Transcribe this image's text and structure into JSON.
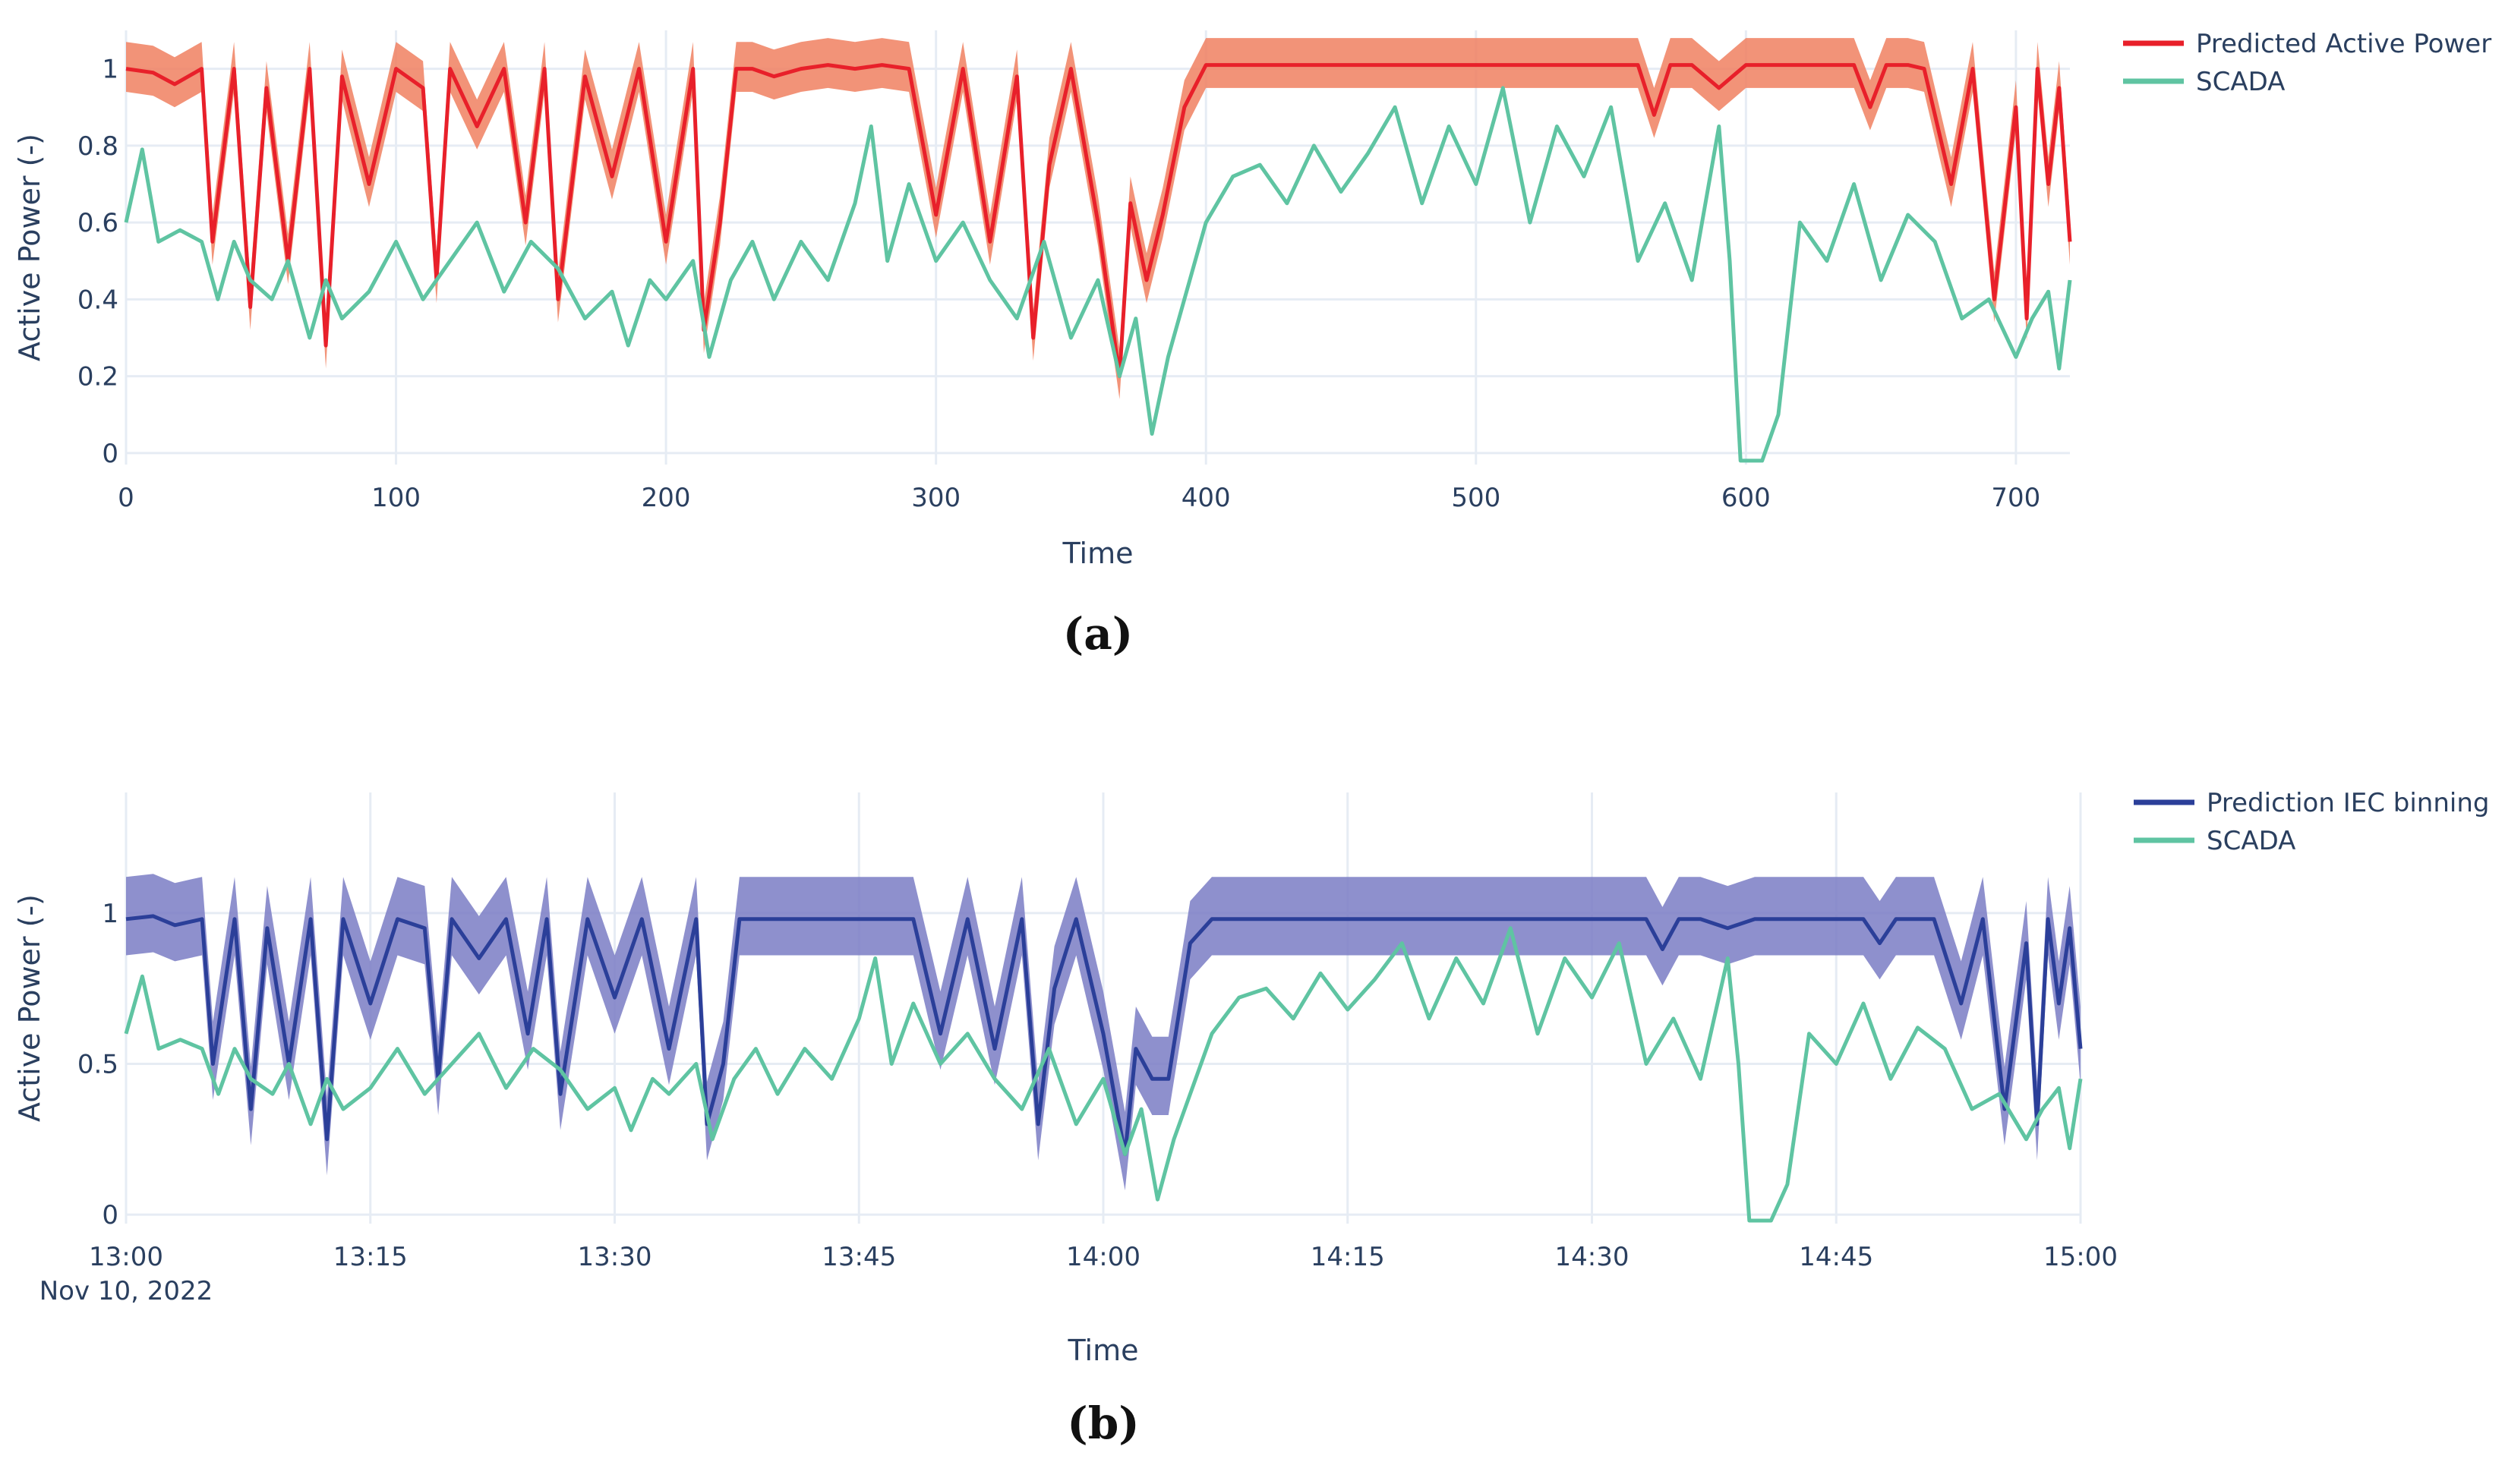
{
  "colors": {
    "predicted_line": "#e8202a",
    "predicted_band": "#f08060",
    "iec_line": "#2b3f99",
    "iec_band": "#7a7cc4",
    "scada": "#5fc4a2",
    "grid": "#e6ecf4",
    "text": "#2a3f5f"
  },
  "chart_data": [
    {
      "type": "line",
      "panel_label": "(a)",
      "xlabel": "Time",
      "ylabel": "Active Power (-)",
      "xlim": [
        0,
        720
      ],
      "ylim": [
        -0.03,
        1.1
      ],
      "x_ticks": [
        0,
        100,
        200,
        300,
        400,
        500,
        600,
        700
      ],
      "x_tick_labels": [
        "0",
        "100",
        "200",
        "300",
        "400",
        "500",
        "600",
        "700"
      ],
      "y_ticks": [
        0,
        0.2,
        0.4,
        0.6,
        0.8,
        1
      ],
      "y_tick_labels": [
        "0",
        "0.2",
        "0.4",
        "0.6",
        "0.8",
        "1"
      ],
      "legend": {
        "position": "top-right",
        "entries": [
          "Predicted Active Power",
          "SCADA"
        ]
      },
      "series": [
        {
          "name": "Predicted Active Power",
          "color_key": "predicted_line",
          "band": {
            "lower_offset": 0.06,
            "upper_offset": 0.07,
            "color_key": "predicted_band"
          },
          "x": [
            0,
            10,
            18,
            28,
            32,
            40,
            46,
            52,
            60,
            68,
            74,
            80,
            90,
            100,
            110,
            115,
            120,
            130,
            140,
            148,
            155,
            160,
            170,
            180,
            190,
            200,
            210,
            214,
            220,
            226,
            232,
            240,
            250,
            260,
            270,
            280,
            290,
            300,
            310,
            320,
            330,
            336,
            342,
            350,
            360,
            368,
            372,
            378,
            384,
            392,
            400,
            420,
            440,
            460,
            480,
            500,
            520,
            540,
            560,
            566,
            572,
            580,
            590,
            600,
            610,
            620,
            640,
            646,
            652,
            660,
            666,
            676,
            684,
            692,
            700,
            704,
            708,
            712,
            716,
            720
          ],
          "values": [
            1.0,
            0.99,
            0.96,
            1.0,
            0.55,
            1.0,
            0.38,
            0.95,
            0.5,
            1.0,
            0.28,
            0.98,
            0.7,
            1.0,
            0.95,
            0.45,
            1.0,
            0.85,
            1.0,
            0.6,
            1.0,
            0.4,
            0.98,
            0.72,
            1.0,
            0.55,
            1.0,
            0.32,
            0.6,
            1.0,
            1.0,
            0.98,
            1.0,
            1.01,
            1.0,
            1.01,
            1.0,
            0.62,
            1.0,
            0.55,
            0.98,
            0.3,
            0.75,
            1.0,
            0.6,
            0.2,
            0.65,
            0.45,
            0.62,
            0.9,
            1.01,
            1.01,
            1.01,
            1.01,
            1.01,
            1.01,
            1.01,
            1.01,
            1.01,
            0.88,
            1.01,
            1.01,
            0.95,
            1.01,
            1.01,
            1.01,
            1.01,
            0.9,
            1.01,
            1.01,
            1.0,
            0.7,
            1.0,
            0.4,
            0.9,
            0.35,
            1.0,
            0.7,
            0.95,
            0.55
          ]
        },
        {
          "name": "SCADA",
          "color_key": "scada",
          "x": [
            0,
            6,
            12,
            20,
            28,
            34,
            40,
            46,
            54,
            60,
            68,
            74,
            80,
            90,
            100,
            110,
            120,
            130,
            140,
            150,
            160,
            170,
            180,
            186,
            194,
            200,
            210,
            216,
            224,
            232,
            240,
            250,
            260,
            270,
            276,
            282,
            290,
            300,
            310,
            320,
            330,
            340,
            350,
            360,
            368,
            374,
            380,
            386,
            394,
            400,
            410,
            420,
            430,
            440,
            450,
            460,
            470,
            480,
            490,
            500,
            510,
            520,
            530,
            540,
            550,
            560,
            570,
            580,
            590,
            594,
            598,
            606,
            612,
            620,
            630,
            640,
            650,
            660,
            670,
            680,
            690,
            700,
            706,
            712,
            716,
            720
          ],
          "values": [
            0.6,
            0.79,
            0.55,
            0.58,
            0.55,
            0.4,
            0.55,
            0.45,
            0.4,
            0.5,
            0.3,
            0.45,
            0.35,
            0.42,
            0.55,
            0.4,
            0.5,
            0.6,
            0.42,
            0.55,
            0.48,
            0.35,
            0.42,
            0.28,
            0.45,
            0.4,
            0.5,
            0.25,
            0.45,
            0.55,
            0.4,
            0.55,
            0.45,
            0.65,
            0.85,
            0.5,
            0.7,
            0.5,
            0.6,
            0.45,
            0.35,
            0.55,
            0.3,
            0.45,
            0.2,
            0.35,
            0.05,
            0.25,
            0.45,
            0.6,
            0.72,
            0.75,
            0.65,
            0.8,
            0.68,
            0.78,
            0.9,
            0.65,
            0.85,
            0.7,
            0.95,
            0.6,
            0.85,
            0.72,
            0.9,
            0.5,
            0.65,
            0.45,
            0.85,
            0.5,
            -0.02,
            -0.02,
            0.1,
            0.6,
            0.5,
            0.7,
            0.45,
            0.62,
            0.55,
            0.35,
            0.4,
            0.25,
            0.35,
            0.42,
            0.22,
            0.45
          ]
        }
      ]
    },
    {
      "type": "line",
      "panel_label": "(b)",
      "xlabel": "Time",
      "ylabel": "Active Power (-)",
      "xlim": [
        0,
        720
      ],
      "ylim": [
        -0.03,
        1.4
      ],
      "x_ticks": [
        0,
        90,
        180,
        270,
        360,
        450,
        540,
        630,
        720
      ],
      "x_tick_labels": [
        "13:00",
        "13:15",
        "13:30",
        "13:45",
        "14:00",
        "14:15",
        "14:30",
        "14:45",
        "15:00"
      ],
      "x_sublabel": "Nov 10, 2022",
      "y_ticks": [
        0,
        0.5,
        1
      ],
      "y_tick_labels": [
        "0",
        "0.5",
        "1"
      ],
      "legend": {
        "position": "top-right",
        "entries": [
          "Prediction IEC binning",
          "SCADA"
        ]
      },
      "series": [
        {
          "name": "Prediction IEC binning",
          "color_key": "iec_line",
          "band": {
            "lower_offset": 0.12,
            "upper_offset": 0.14,
            "color_key": "iec_band"
          },
          "x": [
            0,
            10,
            18,
            28,
            32,
            40,
            46,
            52,
            60,
            68,
            74,
            80,
            90,
            100,
            110,
            115,
            120,
            130,
            140,
            148,
            155,
            160,
            170,
            180,
            190,
            200,
            210,
            214,
            220,
            226,
            232,
            240,
            250,
            260,
            270,
            280,
            290,
            300,
            310,
            320,
            330,
            336,
            342,
            350,
            360,
            368,
            372,
            378,
            384,
            392,
            400,
            420,
            440,
            460,
            480,
            500,
            520,
            540,
            560,
            566,
            572,
            580,
            590,
            600,
            610,
            620,
            640,
            646,
            652,
            660,
            666,
            676,
            684,
            692,
            700,
            704,
            708,
            712,
            716,
            720
          ],
          "values": [
            0.98,
            0.99,
            0.96,
            0.98,
            0.5,
            0.98,
            0.35,
            0.95,
            0.5,
            0.98,
            0.25,
            0.98,
            0.7,
            0.98,
            0.95,
            0.45,
            0.98,
            0.85,
            0.98,
            0.6,
            0.98,
            0.4,
            0.98,
            0.72,
            0.98,
            0.55,
            0.98,
            0.3,
            0.5,
            0.98,
            0.98,
            0.98,
            0.98,
            0.98,
            0.98,
            0.98,
            0.98,
            0.6,
            0.98,
            0.55,
            0.98,
            0.3,
            0.75,
            0.98,
            0.6,
            0.2,
            0.55,
            0.45,
            0.45,
            0.9,
            0.98,
            0.98,
            0.98,
            0.98,
            0.98,
            0.98,
            0.98,
            0.98,
            0.98,
            0.88,
            0.98,
            0.98,
            0.95,
            0.98,
            0.98,
            0.98,
            0.98,
            0.9,
            0.98,
            0.98,
            0.98,
            0.7,
            0.98,
            0.35,
            0.9,
            0.3,
            0.98,
            0.7,
            0.95,
            0.55
          ]
        },
        {
          "name": "SCADA",
          "color_key": "scada",
          "x": [
            0,
            6,
            12,
            20,
            28,
            34,
            40,
            46,
            54,
            60,
            68,
            74,
            80,
            90,
            100,
            110,
            120,
            130,
            140,
            150,
            160,
            170,
            180,
            186,
            194,
            200,
            210,
            216,
            224,
            232,
            240,
            250,
            260,
            270,
            276,
            282,
            290,
            300,
            310,
            320,
            330,
            340,
            350,
            360,
            368,
            374,
            380,
            386,
            394,
            400,
            410,
            420,
            430,
            440,
            450,
            460,
            470,
            480,
            490,
            500,
            510,
            520,
            530,
            540,
            550,
            560,
            570,
            580,
            590,
            594,
            598,
            606,
            612,
            620,
            630,
            640,
            650,
            660,
            670,
            680,
            690,
            700,
            706,
            712,
            716,
            720
          ],
          "values": [
            0.6,
            0.79,
            0.55,
            0.58,
            0.55,
            0.4,
            0.55,
            0.45,
            0.4,
            0.5,
            0.3,
            0.45,
            0.35,
            0.42,
            0.55,
            0.4,
            0.5,
            0.6,
            0.42,
            0.55,
            0.48,
            0.35,
            0.42,
            0.28,
            0.45,
            0.4,
            0.5,
            0.25,
            0.45,
            0.55,
            0.4,
            0.55,
            0.45,
            0.65,
            0.85,
            0.5,
            0.7,
            0.5,
            0.6,
            0.45,
            0.35,
            0.55,
            0.3,
            0.45,
            0.2,
            0.35,
            0.05,
            0.25,
            0.45,
            0.6,
            0.72,
            0.75,
            0.65,
            0.8,
            0.68,
            0.78,
            0.9,
            0.65,
            0.85,
            0.7,
            0.95,
            0.6,
            0.85,
            0.72,
            0.9,
            0.5,
            0.65,
            0.45,
            0.85,
            0.5,
            -0.02,
            -0.02,
            0.1,
            0.6,
            0.5,
            0.7,
            0.45,
            0.62,
            0.55,
            0.35,
            0.4,
            0.25,
            0.35,
            0.42,
            0.22,
            0.45
          ]
        }
      ]
    }
  ]
}
